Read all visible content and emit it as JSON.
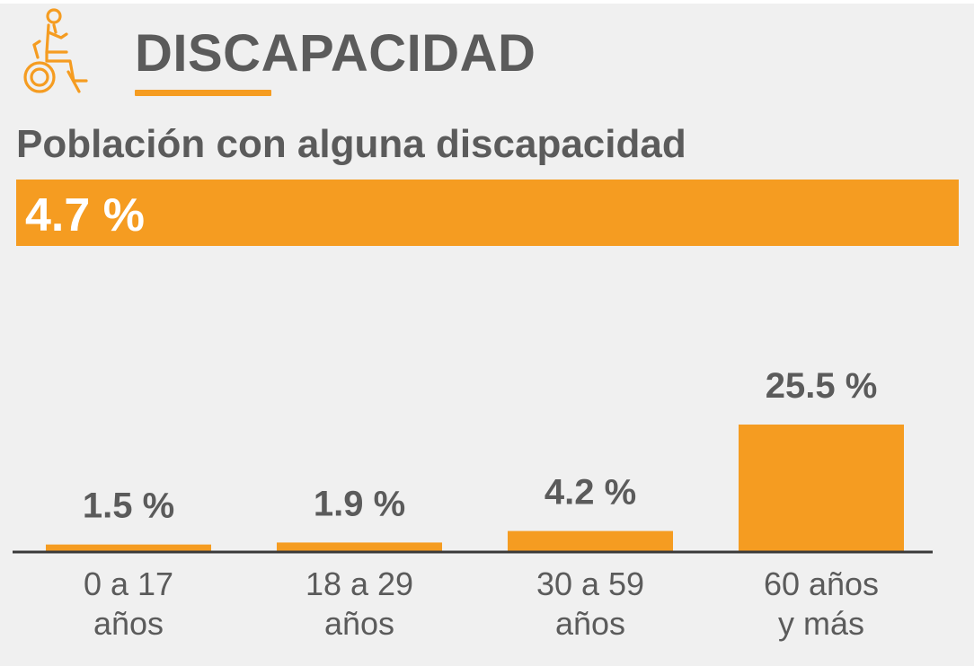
{
  "header": {
    "title": "DISCAPACIDAD",
    "icon": "wheelchair-person-icon"
  },
  "summary": {
    "label": "Población con alguna discapacidad",
    "value": "4.7 %"
  },
  "colors": {
    "accent": "#f59c21",
    "text": "#5b5b5b",
    "background": "#f0f0f0"
  },
  "chart_data": {
    "type": "bar",
    "categories": [
      [
        "0 a 17",
        "años"
      ],
      [
        "18 a 29",
        "años"
      ],
      [
        "30 a 59",
        "años"
      ],
      [
        "60 años",
        "y más"
      ]
    ],
    "values": [
      1.5,
      1.9,
      4.2,
      25.5
    ],
    "value_labels": [
      "1.5 %",
      "1.9 %",
      "4.2 %",
      "25.5 %"
    ],
    "unit": "%",
    "ylim": [
      0,
      25.5
    ],
    "grid": false,
    "legend": "none"
  }
}
